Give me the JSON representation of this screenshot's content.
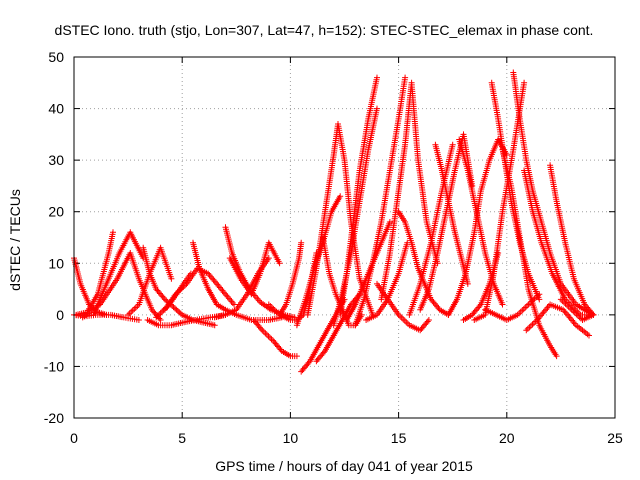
{
  "chart_data": {
    "type": "scatter",
    "title": "dSTEC Iono. truth (stjo, Lon=307, Lat=47, h=152): STEC-STEC_elemax in phase cont.",
    "xlabel": "GPS time / hours of day 041 of year 2015",
    "ylabel": "dSTEC  / TECUs",
    "xlim": [
      0,
      25
    ],
    "ylim": [
      -20,
      50
    ],
    "xticks": [
      0,
      5,
      10,
      15,
      20,
      25
    ],
    "yticks": [
      -20,
      -10,
      0,
      10,
      20,
      30,
      40,
      50
    ],
    "grid": true,
    "legend": "none",
    "marker": "plus",
    "color": "#ff0000",
    "arcs": [
      {
        "x": [
          0.0,
          0.3,
          0.7,
          1.1,
          1.5
        ],
        "y": [
          11,
          6,
          2,
          0.5,
          0
        ]
      },
      {
        "x": [
          0.1,
          0.6,
          1.1,
          1.6,
          1.8
        ],
        "y": [
          0,
          0.5,
          4,
          12,
          16
        ]
      },
      {
        "x": [
          0.0,
          0.5,
          1.0,
          1.7,
          2.3,
          3.0
        ],
        "y": [
          0,
          -0.3,
          0,
          0,
          -0.5,
          -1
        ]
      },
      {
        "x": [
          0.4,
          1.2,
          2.0,
          2.6,
          3.0,
          3.6,
          4.0
        ],
        "y": [
          -0.5,
          2,
          7,
          12,
          7,
          1,
          -1
        ]
      },
      {
        "x": [
          0.9,
          1.5,
          2.1,
          2.6,
          3.2
        ],
        "y": [
          0,
          6,
          12,
          16,
          11
        ]
      },
      {
        "x": [
          2.5,
          3.0,
          3.5,
          4.0,
          4.5
        ],
        "y": [
          0,
          2,
          8,
          13,
          7
        ]
      },
      {
        "x": [
          3.2,
          3.5,
          3.8,
          4.2,
          4.6,
          5.0,
          5.5,
          6.0,
          6.5
        ],
        "y": [
          13,
          8,
          5,
          3,
          1.5,
          0,
          -1,
          -1.5,
          -2
        ]
      },
      {
        "x": [
          3.4,
          3.9,
          4.5,
          5.0,
          5.6,
          6.3,
          7.0
        ],
        "y": [
          -1,
          -2,
          -2,
          -1.5,
          -1,
          -0.5,
          0
        ]
      },
      {
        "x": [
          3.8,
          4.4,
          4.9,
          5.4
        ],
        "y": [
          -0.5,
          2,
          5,
          8
        ]
      },
      {
        "x": [
          4.2,
          4.7,
          5.2,
          5.7,
          6.2,
          6.8,
          7.4
        ],
        "y": [
          1,
          4,
          6,
          9,
          8,
          5,
          2
        ]
      },
      {
        "x": [
          5.5,
          5.8,
          6.2,
          6.6,
          7.0,
          7.5,
          8.2,
          9.0,
          9.6
        ],
        "y": [
          14,
          9,
          5,
          2,
          1,
          0,
          -1,
          -1,
          -0.5
        ]
      },
      {
        "x": [
          6.5,
          7.0,
          7.5,
          8.0,
          8.5,
          9.0
        ],
        "y": [
          -0.5,
          0,
          1,
          4,
          8,
          11
        ]
      },
      {
        "x": [
          7.0,
          7.3,
          7.7,
          8.1,
          8.6,
          9.1,
          9.7,
          10.2
        ],
        "y": [
          17,
          12,
          8,
          5,
          2.5,
          1,
          0,
          -0.5
        ]
      },
      {
        "x": [
          7.2,
          7.7,
          8.2,
          8.6,
          9.0,
          9.5
        ],
        "y": [
          11,
          7,
          4,
          8,
          14,
          10
        ]
      },
      {
        "x": [
          8.3,
          8.7,
          9.2,
          9.6,
          10.0,
          10.3
        ],
        "y": [
          -1,
          -3,
          -5,
          -7,
          -8,
          -8
        ]
      },
      {
        "x": [
          9.0,
          9.5,
          10.0,
          10.3,
          10.6,
          10.9,
          11.2
        ],
        "y": [
          2,
          0,
          -1,
          -1,
          0,
          5,
          12
        ]
      },
      {
        "x": [
          9.5,
          9.8,
          10.1,
          10.4,
          10.5
        ],
        "y": [
          0,
          2,
          6,
          11,
          14
        ]
      },
      {
        "x": [
          10.5,
          10.9,
          11.3,
          11.7,
          12.1,
          12.5
        ],
        "y": [
          -11,
          -9,
          -6,
          -3,
          0,
          3
        ]
      },
      {
        "x": [
          10.3,
          10.7,
          11.1,
          11.5,
          11.9,
          12.3
        ],
        "y": [
          -2,
          3,
          9,
          14,
          20,
          23
        ]
      },
      {
        "x": [
          11.2,
          11.6,
          12.0,
          12.4,
          12.8,
          13.2
        ],
        "y": [
          -9,
          -7,
          -4,
          -1,
          2,
          4
        ]
      },
      {
        "x": [
          10.8,
          11.2,
          11.6,
          12.0,
          12.2,
          12.5,
          12.8,
          13.2,
          13.8
        ],
        "y": [
          0,
          9,
          20,
          31,
          37,
          30,
          18,
          7,
          0
        ]
      },
      {
        "x": [
          11.5,
          11.8,
          12.1,
          12.4,
          12.7,
          13.0,
          13.3
        ],
        "y": [
          15,
          8,
          4,
          1,
          -2,
          -2,
          0
        ]
      },
      {
        "x": [
          12.0,
          12.4,
          12.8,
          13.2,
          13.6,
          14.0
        ],
        "y": [
          -2,
          4,
          12,
          22,
          32,
          40
        ]
      },
      {
        "x": [
          12.3,
          12.6,
          12.9,
          13.2,
          13.6,
          14.0
        ],
        "y": [
          0,
          8,
          18,
          28,
          38,
          46
        ]
      },
      {
        "x": [
          12.6,
          13.0,
          13.4,
          13.8,
          14.2,
          14.6
        ],
        "y": [
          -1,
          2,
          6,
          10,
          14,
          18
        ]
      },
      {
        "x": [
          13.0,
          13.4,
          13.8,
          14.2,
          14.6,
          15.0,
          15.3
        ],
        "y": [
          -2,
          3,
          10,
          18,
          28,
          38,
          46
        ]
      },
      {
        "x": [
          13.5,
          14.0,
          14.5,
          15.0,
          15.4
        ],
        "y": [
          -1,
          0,
          3,
          8,
          14
        ]
      },
      {
        "x": [
          14.2,
          14.6,
          15.0,
          15.3,
          15.6,
          15.9,
          16.3,
          16.8
        ],
        "y": [
          3,
          12,
          24,
          33,
          45,
          30,
          18,
          10
        ]
      },
      {
        "x": [
          15.0,
          15.3,
          15.6,
          15.9,
          16.2,
          16.5,
          16.9,
          17.3
        ],
        "y": [
          20,
          18,
          14,
          9,
          6,
          3,
          1,
          0
        ]
      },
      {
        "x": [
          14.0,
          14.5,
          15.0,
          15.5,
          16.0,
          16.4
        ],
        "y": [
          6,
          3,
          0,
          -2,
          -3,
          -1
        ]
      },
      {
        "x": [
          15.5,
          16.0,
          16.5,
          17.0,
          17.5
        ],
        "y": [
          0,
          6,
          14,
          24,
          33
        ]
      },
      {
        "x": [
          16.0,
          16.4,
          16.8,
          17.2,
          17.6,
          18.0,
          18.4
        ],
        "y": [
          1,
          5,
          12,
          20,
          28,
          35,
          25
        ]
      },
      {
        "x": [
          16.7,
          17.0,
          17.3,
          17.6,
          17.9,
          18.2
        ],
        "y": [
          33,
          28,
          22,
          16,
          11,
          6
        ]
      },
      {
        "x": [
          17.3,
          17.7,
          18.1,
          18.5,
          18.8,
          19.2,
          19.6,
          20.0
        ],
        "y": [
          0,
          3,
          8,
          16,
          24,
          30,
          34,
          31
        ]
      },
      {
        "x": [
          17.8,
          18.2,
          18.6,
          19.0,
          19.4,
          19.8
        ],
        "y": [
          34,
          28,
          20,
          12,
          6,
          2
        ]
      },
      {
        "x": [
          18.0,
          18.4,
          18.8,
          19.2,
          19.6
        ],
        "y": [
          -1,
          0,
          2,
          6,
          12
        ]
      },
      {
        "x": [
          18.5,
          19.0,
          19.4,
          19.8,
          20.3,
          20.8
        ],
        "y": [
          -1,
          0,
          8,
          20,
          32,
          45
        ]
      },
      {
        "x": [
          19.3,
          19.6,
          19.9,
          20.2,
          20.6,
          21.0,
          21.5
        ],
        "y": [
          45,
          38,
          30,
          22,
          14,
          8,
          3
        ]
      },
      {
        "x": [
          19.0,
          19.5,
          20.0,
          20.5,
          21.0,
          21.5
        ],
        "y": [
          1,
          0,
          -1,
          0,
          2,
          4
        ]
      },
      {
        "x": [
          19.8,
          20.2,
          20.6,
          21.0,
          21.5,
          22.0,
          22.3
        ],
        "y": [
          32,
          25,
          15,
          5,
          -2,
          -6,
          -8
        ]
      },
      {
        "x": [
          20.3,
          20.6,
          20.9,
          21.2,
          21.6,
          22.0,
          22.5,
          23.2,
          24.0
        ],
        "y": [
          47,
          38,
          30,
          24,
          18,
          12,
          6,
          2,
          0
        ]
      },
      {
        "x": [
          20.8,
          21.2,
          21.6,
          22.1,
          22.7,
          23.4,
          24.0
        ],
        "y": [
          28,
          20,
          14,
          8,
          3,
          0,
          0
        ]
      },
      {
        "x": [
          20.9,
          21.4,
          22.0,
          22.6,
          23.2,
          23.8
        ],
        "y": [
          -3,
          -1,
          2,
          1,
          -2,
          -4
        ]
      },
      {
        "x": [
          22.0,
          22.3,
          22.7,
          23.1,
          23.6,
          24.0
        ],
        "y": [
          29,
          22,
          14,
          7,
          2,
          0
        ]
      },
      {
        "x": [
          22.5,
          23.0,
          23.5,
          24.0
        ],
        "y": [
          3,
          1,
          -1,
          0
        ]
      }
    ]
  }
}
